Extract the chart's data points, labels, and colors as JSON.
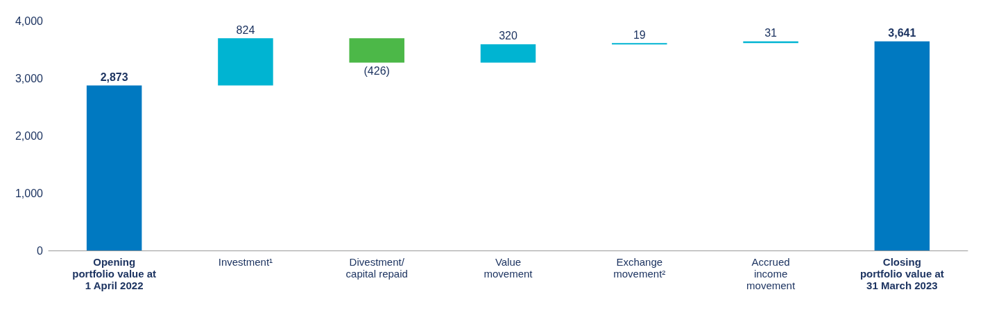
{
  "chart_data": {
    "type": "bar",
    "categories": [
      "Opening\nportfolio value at\n1 April 2022",
      "Investment¹",
      "Divestment/\ncapital repaid",
      "Value\nmovement",
      "Exchange\nmovement²",
      "Accrued\nincome\nmovement",
      "Closing\nportfolio value at\n31 March 2023"
    ],
    "values": [
      2873,
      824,
      -426,
      320,
      19,
      31,
      3641
    ],
    "base": [
      0,
      2873,
      3697,
      3271,
      3591,
      3610,
      0
    ],
    "colors": [
      "#0079c1",
      "#00b4d2",
      "#4cb848",
      "#00b4d2",
      "#00b4d2",
      "#00b4d2",
      "#0079c1"
    ],
    "value_labels": [
      "2,873",
      "824",
      "(426)",
      "320",
      "19",
      "31",
      "3,641"
    ],
    "ylim": [
      0,
      4000
    ],
    "yticks": [
      0,
      {
        "value": 1000,
        "label": "1,000"
      },
      {
        "value": 2000,
        "label": "2,000"
      },
      {
        "value": 3000,
        "label": "3,000"
      },
      {
        "value": 4000,
        "label": "4,000"
      }
    ],
    "grid": false
  }
}
